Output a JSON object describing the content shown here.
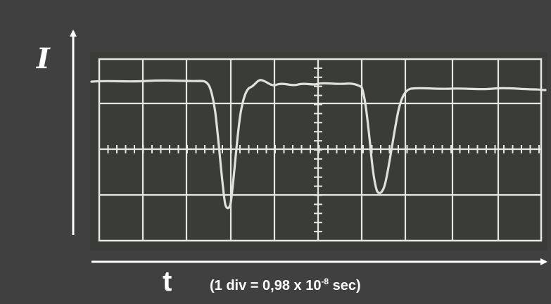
{
  "y_axis_label": "I",
  "x_axis_label": "t",
  "scale_note": {
    "prefix": "(1 div = 0,98 x 10",
    "exponent": "-8",
    "suffix": " sec)"
  },
  "colors": {
    "background": "#404040",
    "screen": "#3a3c38",
    "grid": "#e6e6e2",
    "trace": "#e0e0dc",
    "axes": "#ffffff"
  }
}
